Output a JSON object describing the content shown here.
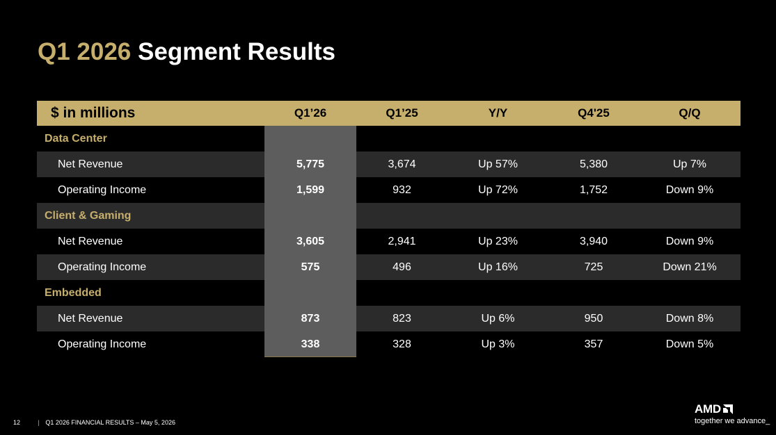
{
  "title": {
    "accent": "Q1 2026",
    "rest": "Segment Results"
  },
  "table": {
    "header": [
      "$ in millions",
      "Q1’26",
      "Q1’25",
      "Y/Y",
      "Q4'25",
      "Q/Q"
    ],
    "rows": [
      {
        "type": "section",
        "label": "Data Center",
        "values": [
          "",
          "",
          "",
          "",
          ""
        ]
      },
      {
        "type": "metric",
        "label": "Net Revenue",
        "values": [
          "5,775",
          "3,674",
          "Up 57%",
          "5,380",
          "Up 7%"
        ]
      },
      {
        "type": "metric",
        "label": "Operating Income",
        "values": [
          "1,599",
          "932",
          "Up 72%",
          "1,752",
          "Down 9%"
        ]
      },
      {
        "type": "section",
        "label": "Client & Gaming",
        "values": [
          "",
          "",
          "",
          "",
          ""
        ]
      },
      {
        "type": "metric",
        "label": "Net Revenue",
        "values": [
          "3,605",
          "2,941",
          "Up 23%",
          "3,940",
          "Down 9%"
        ]
      },
      {
        "type": "metric",
        "label": "Operating Income",
        "values": [
          "575",
          "496",
          "Up 16%",
          "725",
          "Down 21%"
        ]
      },
      {
        "type": "section",
        "label": "Embedded",
        "values": [
          "",
          "",
          "",
          "",
          ""
        ]
      },
      {
        "type": "metric",
        "label": "Net Revenue",
        "values": [
          "873",
          "823",
          "Up 6%",
          "950",
          "Down 8%"
        ]
      },
      {
        "type": "metric",
        "label": "Operating Income",
        "values": [
          "338",
          "328",
          "Up 3%",
          "357",
          "Down 5%"
        ]
      }
    ]
  },
  "footer": {
    "page_number": "12",
    "separator": "|",
    "text": "Q1 2026 FINANCIAL RESULTS – May 5, 2026"
  },
  "brand": {
    "logo_text": "AMD",
    "logo_icon": "amd-arrow-icon",
    "tagline": "together we advance_"
  },
  "colors": {
    "background": "#000000",
    "accent_gold": "#c6ae6c",
    "row_dark": "#2b2b2b",
    "current_column": "#5d5d5d",
    "text": "#ffffff"
  }
}
